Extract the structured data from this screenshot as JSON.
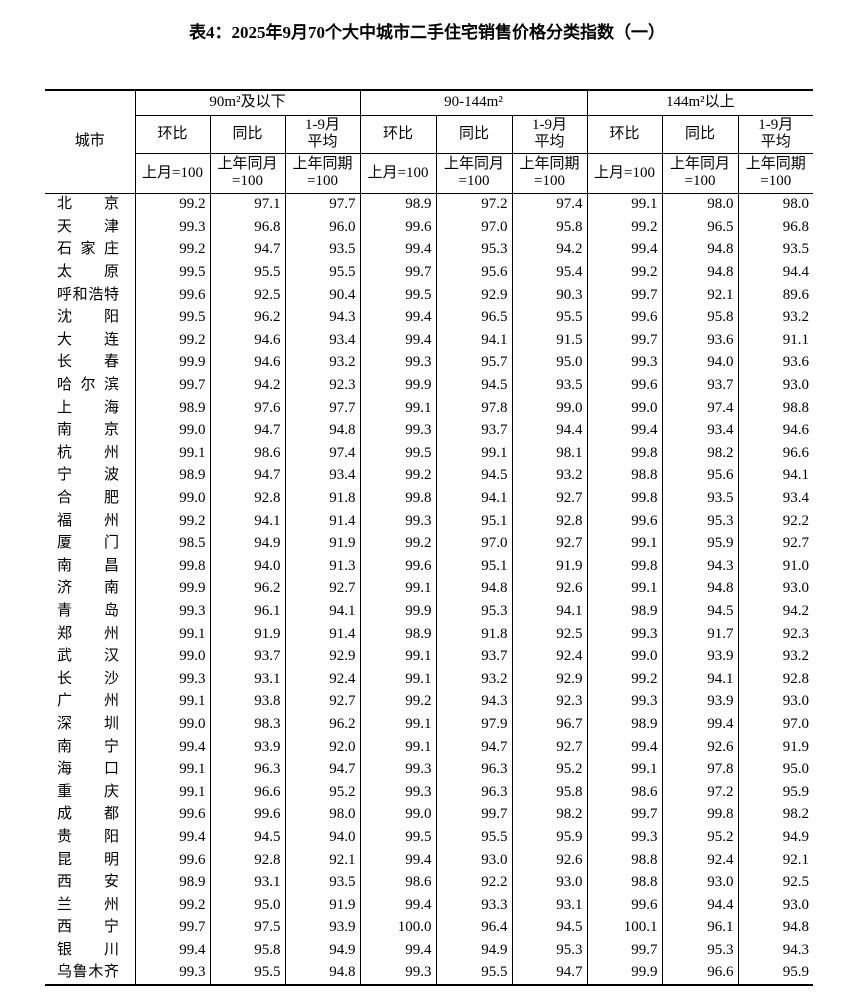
{
  "title": "表4：2025年9月70个大中城市二手住宅销售价格分类指数（一）",
  "table": {
    "corner": "城市",
    "groups": [
      {
        "name": "90m²及以下",
        "columns": [
          {
            "label": [
              "环比"
            ],
            "base": [
              "上月=100"
            ]
          },
          {
            "label": [
              "同比"
            ],
            "base": [
              "上年同月",
              "=100"
            ]
          },
          {
            "label": [
              "1-9月",
              "平均"
            ],
            "base": [
              "上年同期",
              "=100"
            ]
          }
        ]
      },
      {
        "name": "90-144m²",
        "columns": [
          {
            "label": [
              "环比"
            ],
            "base": [
              "上月=100"
            ]
          },
          {
            "label": [
              "同比"
            ],
            "base": [
              "上年同月",
              "=100"
            ]
          },
          {
            "label": [
              "1-9月",
              "平均"
            ],
            "base": [
              "上年同期",
              "=100"
            ]
          }
        ]
      },
      {
        "name": "144m²以上",
        "columns": [
          {
            "label": [
              "环比"
            ],
            "base": [
              "上月=100"
            ]
          },
          {
            "label": [
              "同比"
            ],
            "base": [
              "上年同月",
              "=100"
            ]
          },
          {
            "label": [
              "1-9月",
              "平均"
            ],
            "base": [
              "上年同期",
              "=100"
            ]
          }
        ]
      }
    ],
    "rows": [
      {
        "city": "北京",
        "values": [
          "99.2",
          "97.1",
          "97.7",
          "98.9",
          "97.2",
          "97.4",
          "99.1",
          "98.0",
          "98.0"
        ]
      },
      {
        "city": "天津",
        "values": [
          "99.3",
          "96.8",
          "96.0",
          "99.6",
          "97.0",
          "95.8",
          "99.2",
          "96.5",
          "96.8"
        ]
      },
      {
        "city": "石家庄",
        "values": [
          "99.2",
          "94.7",
          "93.5",
          "99.4",
          "95.3",
          "94.2",
          "99.4",
          "94.8",
          "93.5"
        ]
      },
      {
        "city": "太原",
        "values": [
          "99.5",
          "95.5",
          "95.5",
          "99.7",
          "95.6",
          "95.4",
          "99.2",
          "94.8",
          "94.4"
        ]
      },
      {
        "city": "呼和浩特",
        "values": [
          "99.6",
          "92.5",
          "90.4",
          "99.5",
          "92.9",
          "90.3",
          "99.7",
          "92.1",
          "89.6"
        ]
      },
      {
        "city": "沈阳",
        "values": [
          "99.5",
          "96.2",
          "94.3",
          "99.4",
          "96.5",
          "95.5",
          "99.6",
          "95.8",
          "93.2"
        ]
      },
      {
        "city": "大连",
        "values": [
          "99.2",
          "94.6",
          "93.4",
          "99.4",
          "94.1",
          "91.5",
          "99.7",
          "93.6",
          "91.1"
        ]
      },
      {
        "city": "长春",
        "values": [
          "99.9",
          "94.6",
          "93.2",
          "99.3",
          "95.7",
          "95.0",
          "99.3",
          "94.0",
          "93.6"
        ]
      },
      {
        "city": "哈尔滨",
        "values": [
          "99.7",
          "94.2",
          "92.3",
          "99.9",
          "94.5",
          "93.5",
          "99.6",
          "93.7",
          "93.0"
        ]
      },
      {
        "city": "上海",
        "values": [
          "98.9",
          "97.6",
          "97.7",
          "99.1",
          "97.8",
          "99.0",
          "99.0",
          "97.4",
          "98.8"
        ]
      },
      {
        "city": "南京",
        "values": [
          "99.0",
          "94.7",
          "94.8",
          "99.3",
          "93.7",
          "94.4",
          "99.4",
          "93.4",
          "94.6"
        ]
      },
      {
        "city": "杭州",
        "values": [
          "99.1",
          "98.6",
          "97.4",
          "99.5",
          "99.1",
          "98.1",
          "99.8",
          "98.2",
          "96.6"
        ]
      },
      {
        "city": "宁波",
        "values": [
          "98.9",
          "94.7",
          "93.4",
          "99.2",
          "94.5",
          "93.2",
          "98.8",
          "95.6",
          "94.1"
        ]
      },
      {
        "city": "合肥",
        "values": [
          "99.0",
          "92.8",
          "91.8",
          "99.8",
          "94.1",
          "92.7",
          "99.8",
          "93.5",
          "93.4"
        ]
      },
      {
        "city": "福州",
        "values": [
          "99.2",
          "94.1",
          "91.4",
          "99.3",
          "95.1",
          "92.8",
          "99.6",
          "95.3",
          "92.2"
        ]
      },
      {
        "city": "厦门",
        "values": [
          "98.5",
          "94.9",
          "91.9",
          "99.2",
          "97.0",
          "92.7",
          "99.1",
          "95.9",
          "92.7"
        ]
      },
      {
        "city": "南昌",
        "values": [
          "99.8",
          "94.0",
          "91.3",
          "99.6",
          "95.1",
          "91.9",
          "99.8",
          "94.3",
          "91.0"
        ]
      },
      {
        "city": "济南",
        "values": [
          "99.9",
          "96.2",
          "92.7",
          "99.1",
          "94.8",
          "92.6",
          "99.1",
          "94.8",
          "93.0"
        ]
      },
      {
        "city": "青岛",
        "values": [
          "99.3",
          "96.1",
          "94.1",
          "99.9",
          "95.3",
          "94.1",
          "98.9",
          "94.5",
          "94.2"
        ]
      },
      {
        "city": "郑州",
        "values": [
          "99.1",
          "91.9",
          "91.4",
          "98.9",
          "91.8",
          "92.5",
          "99.3",
          "91.7",
          "92.3"
        ]
      },
      {
        "city": "武汉",
        "values": [
          "99.0",
          "93.7",
          "92.9",
          "99.1",
          "93.7",
          "92.4",
          "99.0",
          "93.9",
          "93.2"
        ]
      },
      {
        "city": "长沙",
        "values": [
          "99.3",
          "93.1",
          "92.4",
          "99.1",
          "93.2",
          "92.9",
          "99.2",
          "94.1",
          "92.8"
        ]
      },
      {
        "city": "广州",
        "values": [
          "99.1",
          "93.8",
          "92.7",
          "99.2",
          "94.3",
          "92.3",
          "99.3",
          "93.9",
          "93.0"
        ]
      },
      {
        "city": "深圳",
        "values": [
          "99.0",
          "98.3",
          "96.2",
          "99.1",
          "97.9",
          "96.7",
          "98.9",
          "99.4",
          "97.0"
        ]
      },
      {
        "city": "南宁",
        "values": [
          "99.4",
          "93.9",
          "92.0",
          "99.1",
          "94.7",
          "92.7",
          "99.4",
          "92.6",
          "91.9"
        ]
      },
      {
        "city": "海口",
        "values": [
          "99.1",
          "96.3",
          "94.7",
          "99.3",
          "96.3",
          "95.2",
          "99.1",
          "97.8",
          "95.0"
        ]
      },
      {
        "city": "重庆",
        "values": [
          "99.1",
          "96.6",
          "95.2",
          "99.3",
          "96.3",
          "95.8",
          "98.6",
          "97.2",
          "95.9"
        ]
      },
      {
        "city": "成都",
        "values": [
          "99.6",
          "99.6",
          "98.0",
          "99.0",
          "99.7",
          "98.2",
          "99.7",
          "99.8",
          "98.2"
        ]
      },
      {
        "city": "贵阳",
        "values": [
          "99.4",
          "94.5",
          "94.0",
          "99.5",
          "95.5",
          "95.9",
          "99.3",
          "95.2",
          "94.9"
        ]
      },
      {
        "city": "昆明",
        "values": [
          "99.6",
          "92.8",
          "92.1",
          "99.4",
          "93.0",
          "92.6",
          "98.8",
          "92.4",
          "92.1"
        ]
      },
      {
        "city": "西安",
        "values": [
          "98.9",
          "93.1",
          "93.5",
          "98.6",
          "92.2",
          "93.0",
          "98.8",
          "93.0",
          "92.5"
        ]
      },
      {
        "city": "兰州",
        "values": [
          "99.2",
          "95.0",
          "91.9",
          "99.4",
          "93.3",
          "93.1",
          "99.6",
          "94.4",
          "93.0"
        ]
      },
      {
        "city": "西宁",
        "values": [
          "99.7",
          "97.5",
          "93.9",
          "100.0",
          "96.4",
          "94.5",
          "100.1",
          "96.1",
          "94.8"
        ]
      },
      {
        "city": "银川",
        "values": [
          "99.4",
          "95.8",
          "94.9",
          "99.4",
          "94.9",
          "95.3",
          "99.7",
          "95.3",
          "94.3"
        ]
      },
      {
        "city": "乌鲁木齐",
        "values": [
          "99.3",
          "95.5",
          "94.8",
          "99.3",
          "95.5",
          "94.7",
          "99.9",
          "96.6",
          "95.9"
        ]
      }
    ]
  }
}
